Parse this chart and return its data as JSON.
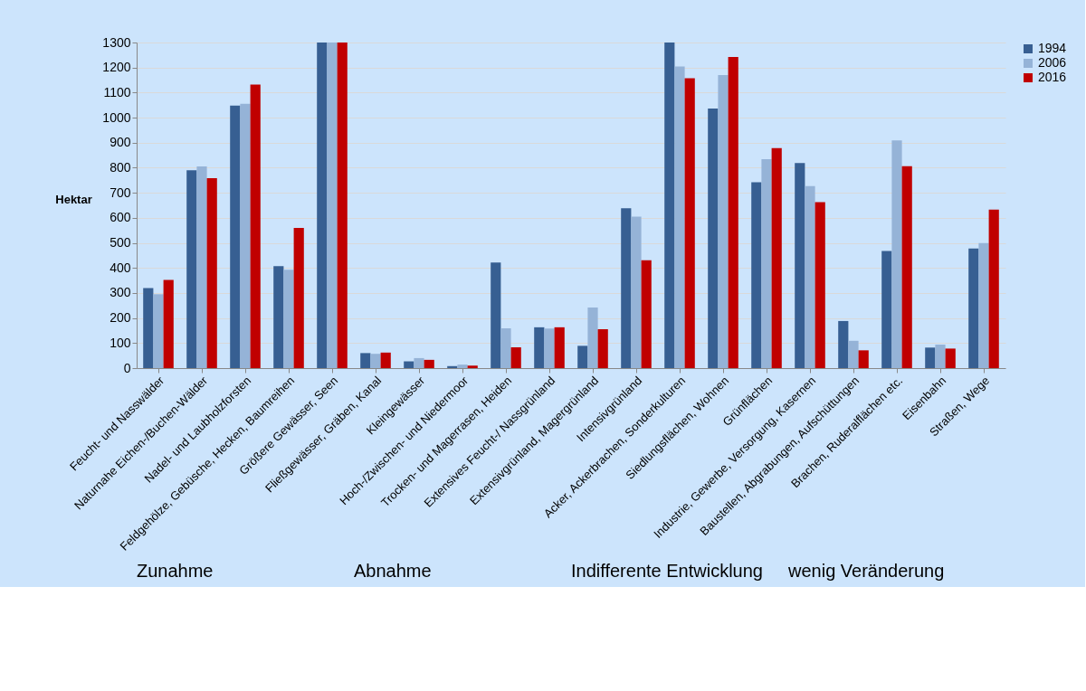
{
  "chart_data": {
    "type": "bar",
    "ylabel": "Hektar",
    "categories": [
      "Feucht- und Nasswälder",
      "Naturnahe Eichen-/Buchen-Wälder",
      "Nadel- und Laubholzforsten",
      "Feldgehölze, Gebüsche, Hecken, Baumreihen",
      "Größere Gewässer, Seen",
      "Fließgewässer, Gräben, Kanal",
      "Kleingewässer",
      "Hoch-/Zwischen- und Niedermoor",
      "Trocken- und Magerrasen, Heiden",
      "Extensives Feucht-/ Nassgrünland",
      "Extensivgrünland, Magergrünland",
      "Intensivgrünland",
      "Acker, Ackerbrachen, Sonderkulturen",
      "Siedlungsflächen, Wohnen",
      "Grünflächen",
      "Industrie, Gewerbe, Versorgung, Kasernen",
      "Baustellen, Abgrabungen, Aufschüttungen",
      "Brachen, Ruderalflächen etc.",
      "Eisenbahn",
      "Straßen, Wege"
    ],
    "series": [
      {
        "name": "1994",
        "color": "#375f92",
        "values": [
          320,
          790,
          1048,
          407,
          1300,
          60,
          27,
          8,
          422,
          163,
          89,
          638,
          1300,
          1036,
          742,
          819,
          188,
          468,
          82,
          478
        ]
      },
      {
        "name": "2006",
        "color": "#95b3d7",
        "values": [
          295,
          805,
          1055,
          393,
          1300,
          57,
          40,
          14,
          159,
          158,
          242,
          605,
          1204,
          1170,
          834,
          727,
          109,
          909,
          94,
          499
        ]
      },
      {
        "name": "2016",
        "color": "#c00000",
        "values": [
          352,
          758,
          1132,
          560,
          1300,
          62,
          33,
          10,
          83,
          163,
          155,
          431,
          1157,
          1242,
          878,
          663,
          71,
          806,
          78,
          633
        ]
      }
    ],
    "ylim": [
      0,
      1300
    ],
    "yticks": [
      0,
      100,
      200,
      300,
      400,
      500,
      600,
      700,
      800,
      900,
      1000,
      1100,
      1200,
      1300
    ],
    "grid": "y",
    "legend": "right",
    "annotations": [
      "Zunahme",
      "Abnahme",
      "Indifferente Entwicklung",
      "wenig Veränderung"
    ]
  }
}
